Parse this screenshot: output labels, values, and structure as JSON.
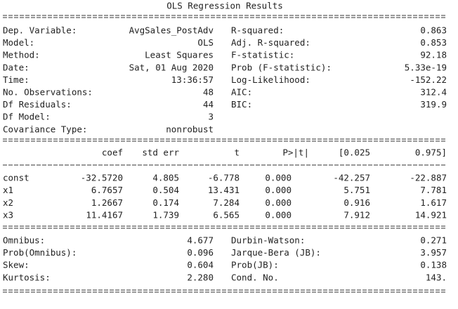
{
  "title": "OLS Regression Results",
  "model_info": {
    "left": [
      [
        "Dep. Variable:",
        "AvgSales_PostAdv"
      ],
      [
        "Model:",
        "OLS"
      ],
      [
        "Method:",
        "Least Squares"
      ],
      [
        "Date:",
        "Sat, 01 Aug 2020"
      ],
      [
        "Time:",
        "13:36:57"
      ],
      [
        "No. Observations:",
        "48"
      ],
      [
        "Df Residuals:",
        "44"
      ],
      [
        "Df Model:",
        "3"
      ],
      [
        "Covariance Type:",
        "nonrobust"
      ]
    ],
    "right": [
      [
        "R-squared:",
        "0.863"
      ],
      [
        "Adj. R-squared:",
        "0.853"
      ],
      [
        "F-statistic:",
        "92.18"
      ],
      [
        "Prob (F-statistic):",
        "5.33e-19"
      ],
      [
        "Log-Likelihood:",
        "-152.22"
      ],
      [
        "AIC:",
        "312.4"
      ],
      [
        "BIC:",
        "319.9"
      ]
    ]
  },
  "coefficients": {
    "columns": [
      "coef",
      "std err",
      "t",
      "P>|t|",
      "[0.025",
      "0.975]"
    ],
    "rows": [
      [
        "const",
        "-32.5720",
        "4.805",
        "-6.778",
        "0.000",
        "-42.257",
        "-22.887"
      ],
      [
        "x1",
        "6.7657",
        "0.504",
        "13.431",
        "0.000",
        "5.751",
        "7.781"
      ],
      [
        "x2",
        "1.2667",
        "0.174",
        "7.284",
        "0.000",
        "0.916",
        "1.617"
      ],
      [
        "x3",
        "11.4167",
        "1.739",
        "6.565",
        "0.000",
        "7.912",
        "14.921"
      ]
    ]
  },
  "diagnostics": {
    "left": [
      [
        "Omnibus:",
        "4.677"
      ],
      [
        "Prob(Omnibus):",
        "0.096"
      ],
      [
        "Skew:",
        "0.604"
      ],
      [
        "Kurtosis:",
        "2.280"
      ]
    ],
    "right": [
      [
        "Durbin-Watson:",
        "0.271"
      ],
      [
        "Jarque-Bera (JB):",
        "3.957"
      ],
      [
        "Prob(JB):",
        "0.138"
      ],
      [
        "Cond. No.",
        "143."
      ]
    ]
  }
}
